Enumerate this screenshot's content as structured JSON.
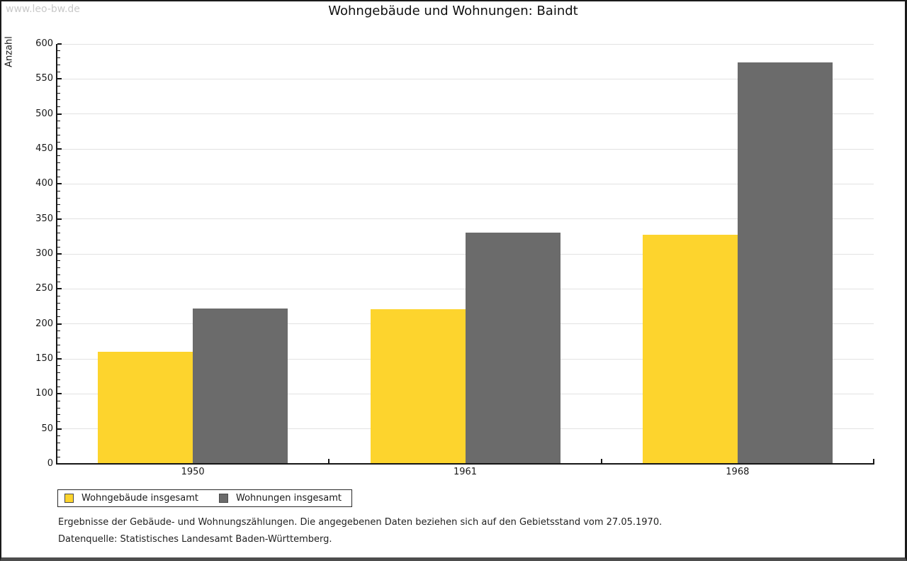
{
  "watermark": "www.leo-bw.de",
  "title": "Wohngebäude und Wohnungen: Baindt",
  "chart_data": {
    "type": "bar",
    "title": "Wohngebäude und Wohnungen: Baindt",
    "ylabel": "Anzahl",
    "ylim": [
      0,
      600
    ],
    "ytick_step": 50,
    "minor_ytick_step": 10,
    "grid": true,
    "legend_position": "bottom-left",
    "categories": [
      "1950",
      "1961",
      "1968"
    ],
    "series": [
      {
        "name": "Wohngebäude insgesamt",
        "color": "#FDD42D",
        "values": [
          160,
          221,
          327
        ]
      },
      {
        "name": "Wohnungen insgesamt",
        "color": "#6B6B6B",
        "values": [
          222,
          330,
          574
        ]
      }
    ]
  },
  "footer": {
    "line1": "Ergebnisse der Gebäude- und Wohnungszählungen. Die angegebenen Daten beziehen sich auf den Gebietsstand vom 27.05.1970.",
    "line2": "Datenquelle: Statistisches Landesamt Baden-Württemberg."
  },
  "colors": {
    "gridline": "#E2E2E2",
    "axis": "#161616",
    "text": "#1A1A1A"
  }
}
